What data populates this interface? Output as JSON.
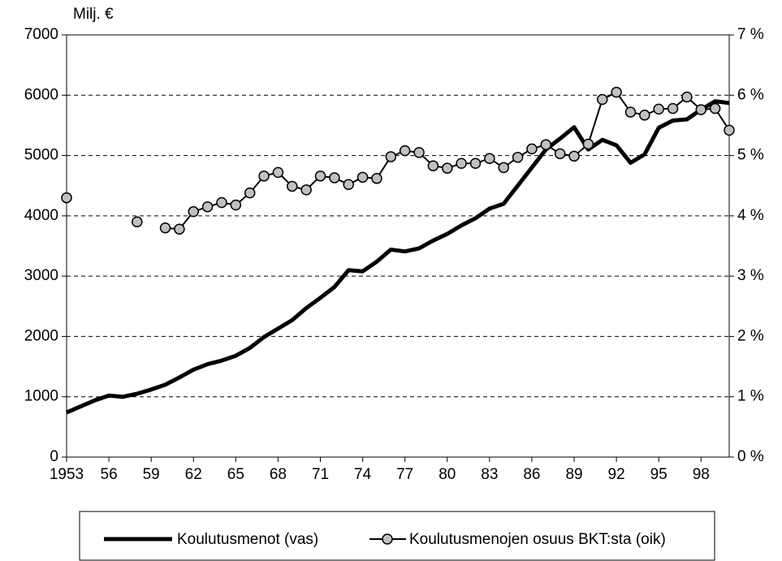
{
  "chart_data": {
    "type": "line",
    "y_axis_label": "Milj. €",
    "x": [
      1953,
      1954,
      1955,
      1956,
      1957,
      1958,
      1959,
      1960,
      1961,
      1962,
      1963,
      1964,
      1965,
      1966,
      1967,
      1968,
      1969,
      1970,
      1971,
      1972,
      1973,
      1974,
      1975,
      1976,
      1977,
      1978,
      1979,
      1980,
      1981,
      1982,
      1983,
      1984,
      1985,
      1986,
      1987,
      1988,
      1989,
      1990,
      1991,
      1992,
      1993,
      1994,
      1995,
      1996,
      1997,
      1998,
      1999,
      2000
    ],
    "series": [
      {
        "name": "Koulutusmenot (vas)",
        "color": "#000000",
        "axis": "y",
        "values": [
          740,
          840,
          940,
          1020,
          1000,
          1050,
          1120,
          1200,
          1320,
          1450,
          1540,
          1600,
          1680,
          1810,
          1990,
          2130,
          2270,
          2470,
          2640,
          2820,
          3100,
          3080,
          3240,
          3440,
          3410,
          3460,
          3590,
          3700,
          3840,
          3960,
          4120,
          4200,
          4500,
          4800,
          5100,
          5280,
          5470,
          5100,
          5260,
          5170,
          4880,
          5020,
          5460,
          5580,
          5600,
          5760,
          5900,
          5870
        ]
      },
      {
        "name": "Koulutusmenojen osuus BKT:sta (oik)",
        "color": "#000000",
        "marker_color": "#c0c0c0",
        "axis": "y2",
        "values": [
          4.3,
          null,
          null,
          null,
          null,
          3.9,
          null,
          3.8,
          3.78,
          4.07,
          4.15,
          4.22,
          4.18,
          4.38,
          4.66,
          4.72,
          4.49,
          4.43,
          4.66,
          4.63,
          4.52,
          4.64,
          4.62,
          4.98,
          5.08,
          5.05,
          4.83,
          4.79,
          4.87,
          4.87,
          4.95,
          4.8,
          4.97,
          5.11,
          5.18,
          5.03,
          4.99,
          5.19,
          5.93,
          6.05,
          5.72,
          5.67,
          5.77,
          5.78,
          5.97,
          5.76,
          5.78,
          5.42
        ]
      }
    ],
    "xlim": [
      1953,
      2000
    ],
    "xticks": [
      {
        "value": 1953,
        "label": "1953"
      },
      {
        "value": 1956,
        "label": "56"
      },
      {
        "value": 1959,
        "label": "59"
      },
      {
        "value": 1962,
        "label": "62"
      },
      {
        "value": 1965,
        "label": "65"
      },
      {
        "value": 1968,
        "label": "68"
      },
      {
        "value": 1971,
        "label": "71"
      },
      {
        "value": 1974,
        "label": "74"
      },
      {
        "value": 1977,
        "label": "77"
      },
      {
        "value": 1980,
        "label": "80"
      },
      {
        "value": 1983,
        "label": "83"
      },
      {
        "value": 1986,
        "label": "86"
      },
      {
        "value": 1989,
        "label": "89"
      },
      {
        "value": 1992,
        "label": "92"
      },
      {
        "value": 1995,
        "label": "95"
      },
      {
        "value": 1998,
        "label": "98"
      }
    ],
    "ylim": [
      0,
      7000
    ],
    "yticks": [
      0,
      1000,
      2000,
      3000,
      4000,
      5000,
      6000,
      7000
    ],
    "y2lim": [
      0,
      7
    ],
    "y2ticks": [
      {
        "value": 0,
        "label": "0 %"
      },
      {
        "value": 1,
        "label": "1 %"
      },
      {
        "value": 2,
        "label": "2 %"
      },
      {
        "value": 3,
        "label": "3 %"
      },
      {
        "value": 4,
        "label": "4 %"
      },
      {
        "value": 5,
        "label": "5 %"
      },
      {
        "value": 6,
        "label": "6 %"
      },
      {
        "value": 7,
        "label": "7 %"
      }
    ],
    "grid": true,
    "legend": "bottom"
  }
}
